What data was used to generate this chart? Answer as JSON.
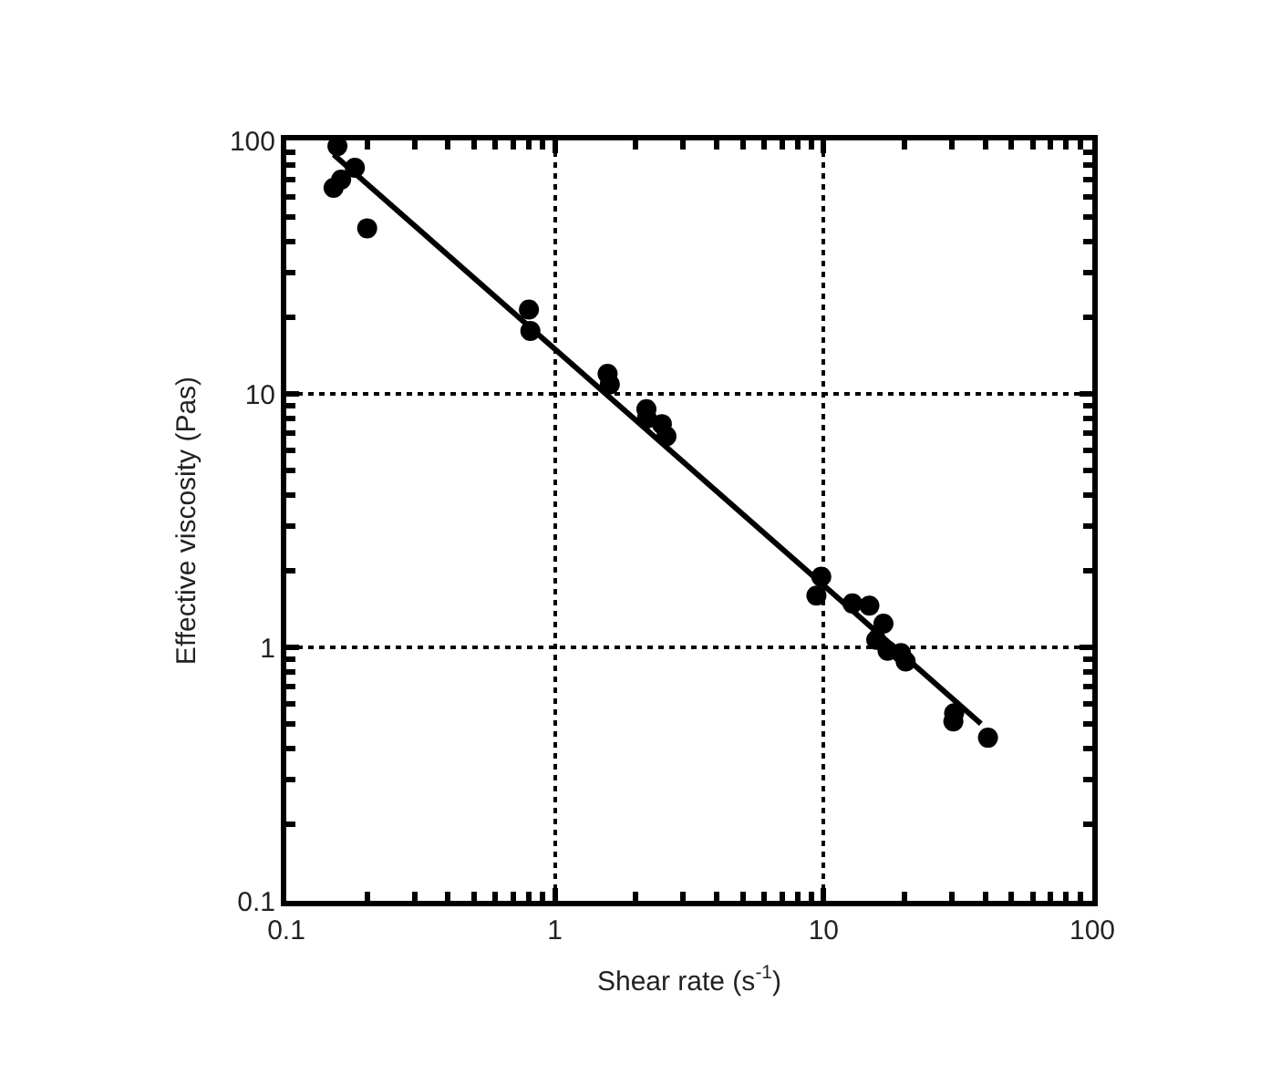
{
  "chart_data": {
    "type": "scatter",
    "xlabel": "Shear rate (s$^{-1}$)",
    "ylabel": "Effective viscosity (Pas)",
    "log": "xy",
    "grid": true,
    "marker": "circle",
    "xlim": [
      0.1,
      100
    ],
    "ylim": [
      0.1,
      100
    ],
    "xticks": [
      0.1,
      {
        "value": 0.2,
        "label": null
      },
      {
        "value": 0.3,
        "label": null
      },
      {
        "value": 0.4,
        "label": null
      },
      {
        "value": 0.5,
        "label": null
      },
      {
        "value": 0.6,
        "label": null
      },
      {
        "value": 0.7,
        "label": null
      },
      {
        "value": 0.8,
        "label": null
      },
      {
        "value": 0.9,
        "label": null
      },
      1,
      {
        "value": 2,
        "label": null
      },
      {
        "value": 3,
        "label": null
      },
      {
        "value": 4,
        "label": null
      },
      {
        "value": 5,
        "label": null
      },
      {
        "value": 6,
        "label": null
      },
      {
        "value": 7,
        "label": null
      },
      {
        "value": 8,
        "label": null
      },
      {
        "value": 9,
        "label": null
      },
      10,
      {
        "value": 20,
        "label": null
      },
      {
        "value": 30,
        "label": null
      },
      {
        "value": 40,
        "label": null
      },
      {
        "value": 50,
        "label": null
      },
      {
        "value": 60,
        "label": null
      },
      {
        "value": 70,
        "label": null
      },
      {
        "value": 80,
        "label": null
      },
      {
        "value": 90,
        "label": null
      },
      100
    ],
    "yticks": [
      0.1,
      {
        "value": 0.2,
        "label": null
      },
      {
        "value": 0.3,
        "label": null
      },
      {
        "value": 0.4,
        "label": null
      },
      {
        "value": 0.5,
        "label": null
      },
      {
        "value": 0.6,
        "label": null
      },
      {
        "value": 0.7,
        "label": null
      },
      {
        "value": 0.8,
        "label": null
      },
      {
        "value": 0.9,
        "label": null
      },
      1,
      {
        "value": 2,
        "label": null
      },
      {
        "value": 3,
        "label": null
      },
      {
        "value": 4,
        "label": null
      },
      {
        "value": 5,
        "label": null
      },
      {
        "value": 6,
        "label": null
      },
      {
        "value": 7,
        "label": null
      },
      {
        "value": 8,
        "label": null
      },
      {
        "value": 9,
        "label": null
      },
      10,
      {
        "value": 20,
        "label": null
      },
      {
        "value": 30,
        "label": null
      },
      {
        "value": 40,
        "label": null
      },
      {
        "value": 50,
        "label": null
      },
      {
        "value": 60,
        "label": null
      },
      {
        "value": 70,
        "label": null
      },
      {
        "value": 80,
        "label": null
      },
      {
        "value": 90,
        "label": null
      },
      100
    ],
    "series": [
      {
        "color": "#000000",
        "x": [
          0.155,
          0.15,
          0.16,
          0.18,
          0.2,
          0.8,
          0.81,
          1.57,
          1.6,
          2.19,
          2.2,
          2.5,
          2.6,
          9.8,
          9.4,
          12.8,
          14.8,
          16.7,
          15.7,
          17.3,
          20.2,
          19.4,
          30.4,
          30.6,
          40.9
        ],
        "values": [
          95,
          65,
          70,
          78,
          45,
          21.5,
          17.7,
          12,
          10.9,
          8.7,
          8.0,
          7.6,
          6.8,
          1.9,
          1.6,
          1.49,
          1.46,
          1.24,
          1.07,
          0.97,
          0.88,
          0.95,
          0.51,
          0.55,
          0.44
        ]
      },
      {
        "type": "line",
        "color": "#000000",
        "marker": "none",
        "x": [
          0.15,
          38.5
        ],
        "values": [
          88,
          0.5
        ]
      }
    ]
  }
}
